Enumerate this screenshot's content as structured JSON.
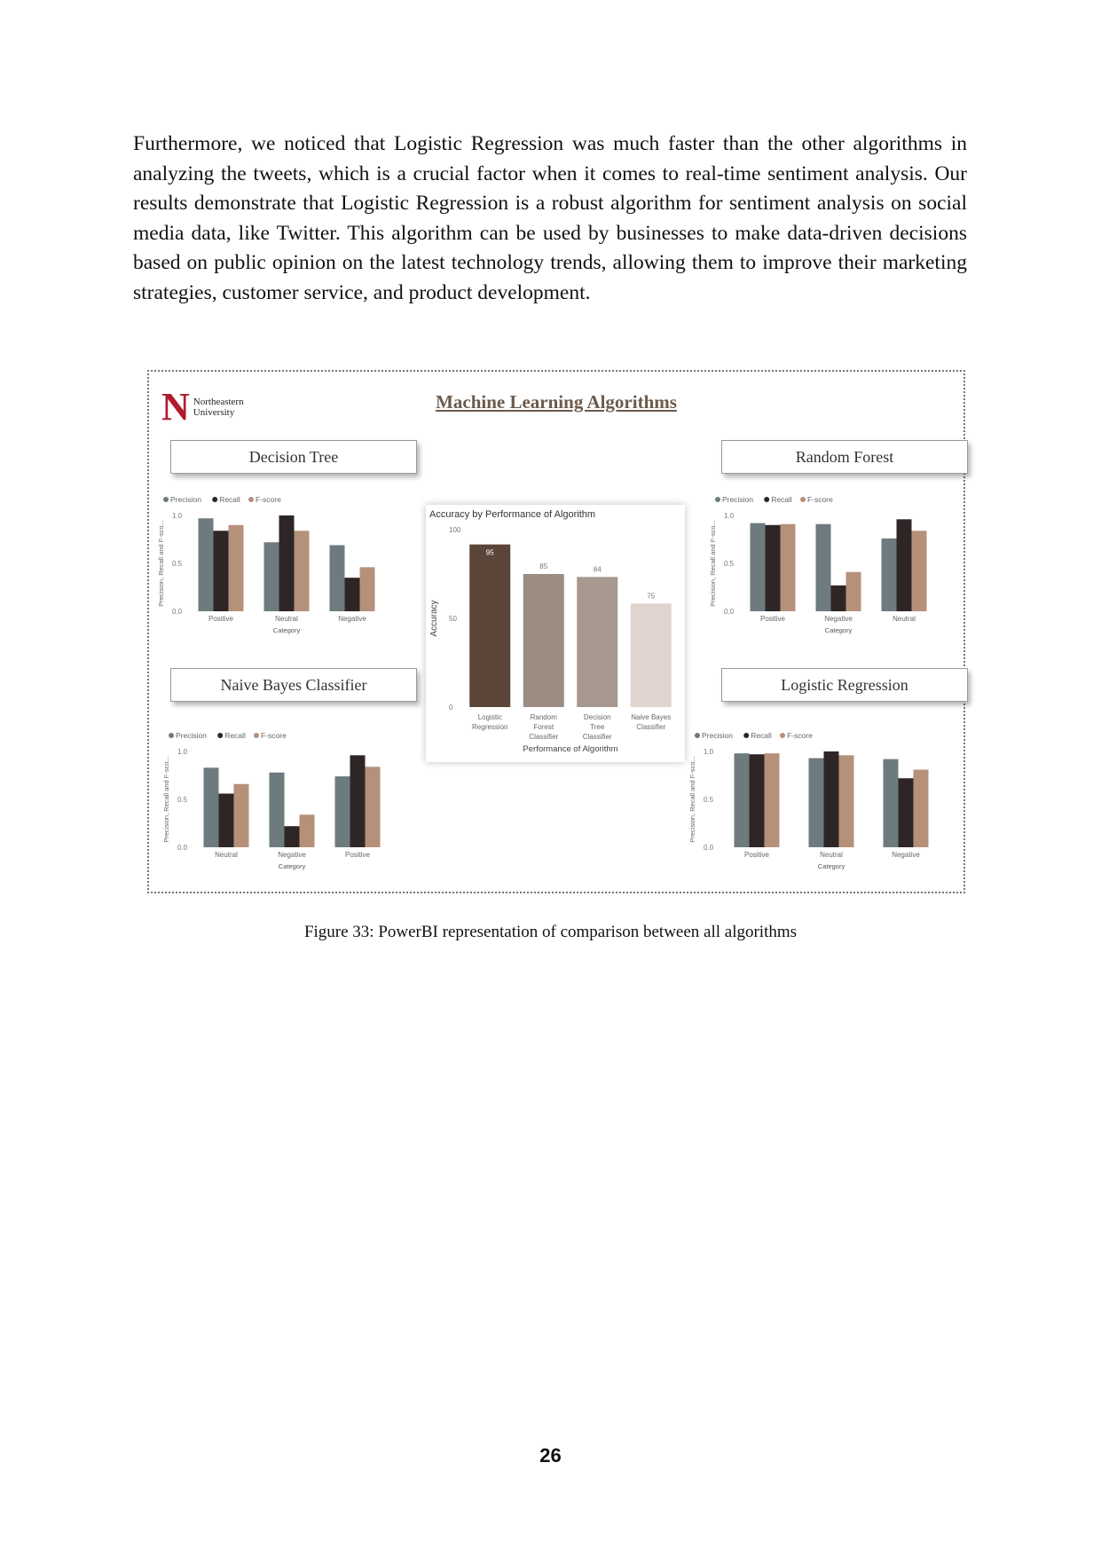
{
  "paragraph": "Furthermore, we noticed that Logistic Regression was much faster than the other algorithms in analyzing the tweets, which is a crucial factor when it comes to real-time sentiment analysis. Our results demonstrate that Logistic Regression is a robust algorithm for sentiment analysis on social media data, like Twitter. This algorithm can be used by businesses to make data-driven decisions based on public opinion on the latest technology trends, allowing them to improve their marketing strategies, customer service, and product development.",
  "figure": {
    "logo_letter": "N",
    "logo_line1": "Northeastern",
    "logo_line2": "University",
    "dashboard_title": "Machine Learning Algorithms",
    "panel_titles": {
      "decision_tree": "Decision Tree",
      "random_forest": "Random Forest",
      "naive_bayes": "Naive Bayes Classifier",
      "logistic_regression": "Logistic Regression"
    },
    "caption": "Figure 33: PowerBI representation of comparison between all algorithms"
  },
  "page_number": "26",
  "colors": {
    "precision": "#6e7b7e",
    "recall": "#2e2626",
    "fscore": "#b5917a",
    "acc_bars": [
      "#5a4538",
      "#9c8d82",
      "#a79890",
      "#e0d5ce"
    ]
  },
  "chart_data": [
    {
      "id": "dt",
      "type": "bar",
      "legend": [
        "Precision",
        "Recall",
        "F-score"
      ],
      "ylabel": "Precision, Recall and F-sco...",
      "xlabel": "Category",
      "yticks": [
        "0.0",
        "0.5",
        "1.0"
      ],
      "ylim": [
        0,
        1
      ],
      "categories": [
        "Positive",
        "Neutral",
        "Negative"
      ],
      "series": [
        {
          "name": "Precision",
          "values": [
            0.97,
            0.72,
            0.69
          ]
        },
        {
          "name": "Recall",
          "values": [
            0.84,
            1.0,
            0.35
          ]
        },
        {
          "name": "F-score",
          "values": [
            0.9,
            0.84,
            0.46
          ]
        }
      ]
    },
    {
      "id": "rf",
      "type": "bar",
      "legend": [
        "Precision",
        "Recall",
        "F-score"
      ],
      "ylabel": "Precision, Recall and F-sco...",
      "xlabel": "Category",
      "yticks": [
        "0.0",
        "0.5",
        "1.0"
      ],
      "ylim": [
        0,
        1
      ],
      "categories": [
        "Positive",
        "Negative",
        "Neutral"
      ],
      "series": [
        {
          "name": "Precision",
          "values": [
            0.92,
            0.91,
            0.76
          ]
        },
        {
          "name": "Recall",
          "values": [
            0.9,
            0.27,
            0.96
          ]
        },
        {
          "name": "F-score",
          "values": [
            0.91,
            0.41,
            0.84
          ]
        }
      ]
    },
    {
      "id": "nb",
      "type": "bar",
      "legend": [
        "Precision",
        "Recall",
        "F-score"
      ],
      "ylabel": "Precision, Recall and F-sco...",
      "xlabel": "Category",
      "yticks": [
        "0.0",
        "0.5",
        "1.0"
      ],
      "ylim": [
        0,
        1
      ],
      "categories": [
        "Neutral",
        "Negative",
        "Positive"
      ],
      "series": [
        {
          "name": "Precision",
          "values": [
            0.83,
            0.78,
            0.74
          ]
        },
        {
          "name": "Recall",
          "values": [
            0.56,
            0.22,
            0.96
          ]
        },
        {
          "name": "F-score",
          "values": [
            0.66,
            0.34,
            0.84
          ]
        }
      ]
    },
    {
      "id": "lr",
      "type": "bar",
      "legend": [
        "Precision",
        "Recall",
        "F-score"
      ],
      "ylabel": "Precision, Recall and F-sco...",
      "xlabel": "Category",
      "yticks": [
        "0.0",
        "0.5",
        "1.0"
      ],
      "ylim": [
        0,
        1
      ],
      "categories": [
        "Positive",
        "Neutral",
        "Negative"
      ],
      "series": [
        {
          "name": "Precision",
          "values": [
            0.98,
            0.93,
            0.92
          ]
        },
        {
          "name": "Recall",
          "values": [
            0.97,
            1.0,
            0.72
          ]
        },
        {
          "name": "F-score",
          "values": [
            0.98,
            0.96,
            0.81
          ]
        }
      ]
    },
    {
      "id": "acc",
      "type": "bar",
      "title": "Accuracy by Performance of Algorithm",
      "ylabel": "Accuracy",
      "xlabel": "Performance of Algorithm",
      "yticks": [
        "0",
        "50",
        "100"
      ],
      "ylim": [
        0,
        100
      ],
      "categories": [
        [
          "Logistic",
          "Regression"
        ],
        [
          "Random",
          "Forest",
          "Classifier"
        ],
        [
          "Decision",
          "Tree",
          "Classifier"
        ],
        [
          "Naive Bayes",
          "Classifier"
        ]
      ],
      "values": [
        95,
        85,
        84,
        75
      ],
      "data_labels": [
        "95",
        "85",
        "84",
        "75"
      ]
    }
  ]
}
